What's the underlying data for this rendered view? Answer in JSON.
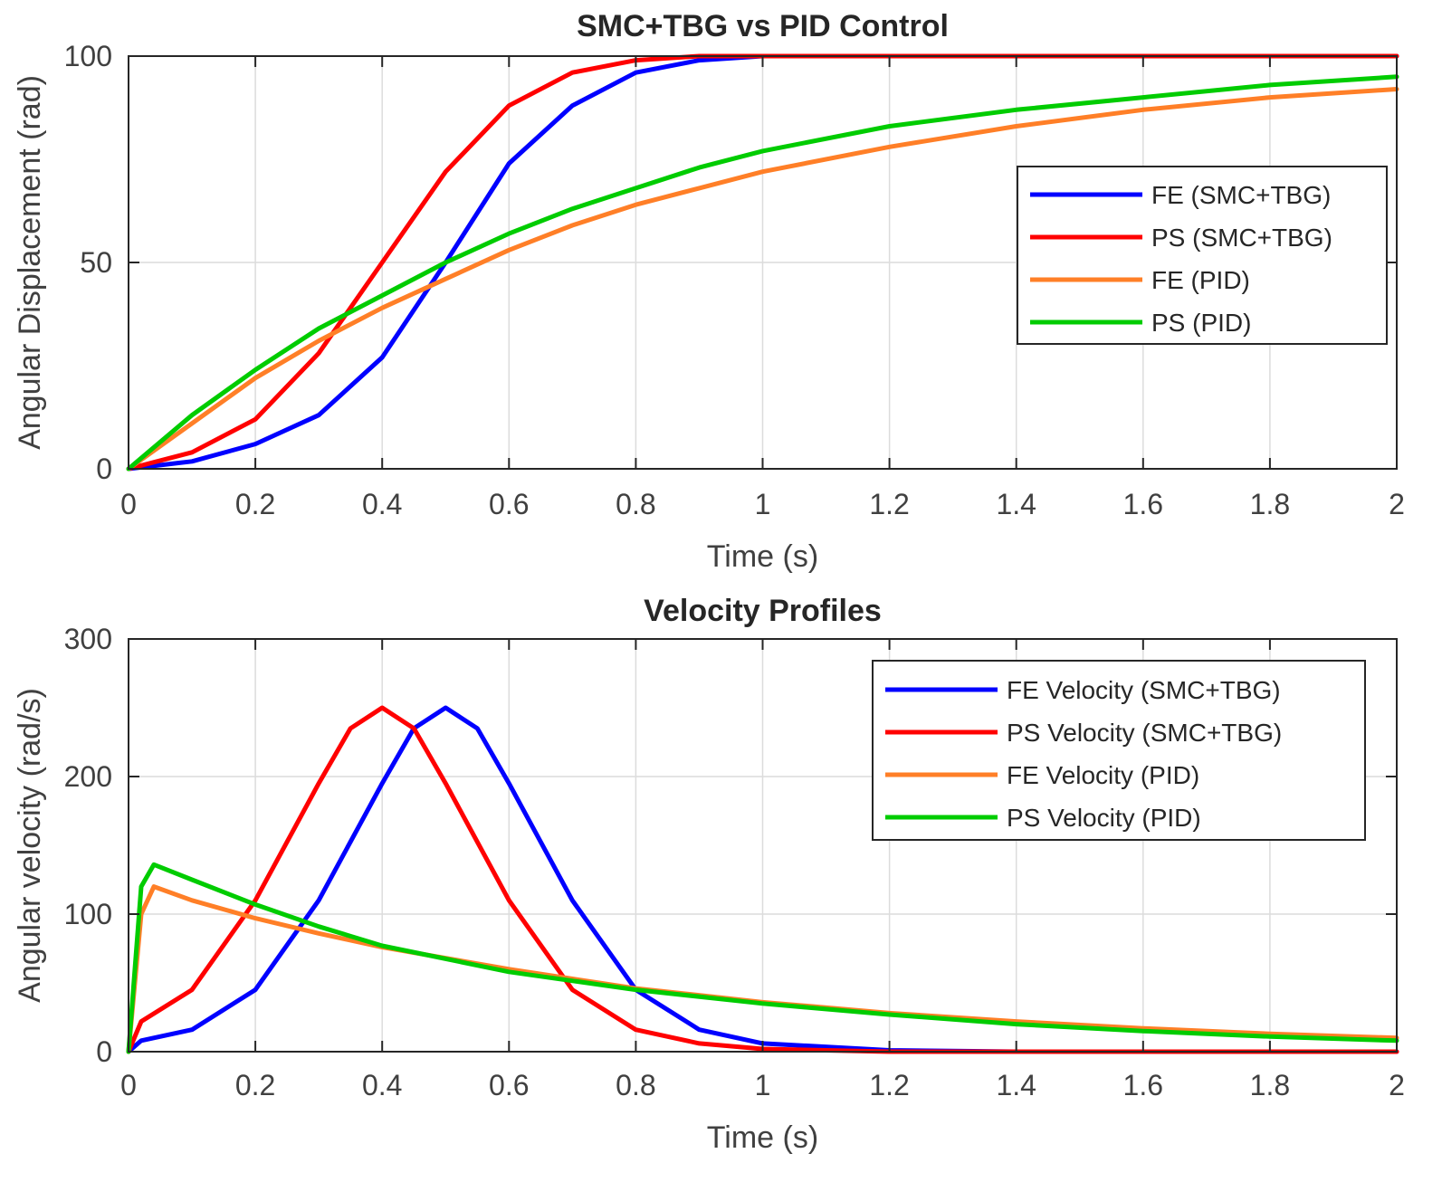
{
  "chart_data": [
    {
      "type": "line",
      "title": "SMC+TBG vs PID Control",
      "xlabel": "Time (s)",
      "ylabel": "Angular Displacement (rad)",
      "xlim": [
        0,
        2
      ],
      "ylim": [
        0,
        100
      ],
      "xticks": [
        0,
        0.2,
        0.4,
        0.6,
        0.8,
        1,
        1.2,
        1.4,
        1.6,
        1.8,
        2
      ],
      "xtick_labels": [
        "0",
        "0.2",
        "0.4",
        "0.6",
        "0.8",
        "1",
        "1.2",
        "1.4",
        "1.6",
        "1.8",
        "2"
      ],
      "yticks": [
        0,
        50,
        100
      ],
      "ytick_labels": [
        "0",
        "50",
        "100"
      ],
      "grid": true,
      "legend_position": "right",
      "x": [
        0,
        0.1,
        0.2,
        0.3,
        0.4,
        0.5,
        0.6,
        0.7,
        0.8,
        0.9,
        1.0,
        1.2,
        1.4,
        1.6,
        1.8,
        2.0
      ],
      "series": [
        {
          "name": "FE (SMC+TBG)",
          "color": "#0000ff",
          "values": [
            0,
            1.8,
            6,
            13,
            27,
            50,
            74,
            88,
            96,
            99,
            100,
            100,
            100,
            100,
            100,
            100
          ]
        },
        {
          "name": "PS (SMC+TBG)",
          "color": "#ff0000",
          "values": [
            0,
            4,
            12,
            28,
            50,
            72,
            88,
            96,
            99,
            100,
            100,
            100,
            100,
            100,
            100,
            100
          ]
        },
        {
          "name": "FE (PID)",
          "color": "#ff7f27",
          "values": [
            0,
            11,
            22,
            31,
            39,
            46,
            53,
            59,
            64,
            68,
            72,
            78,
            83,
            87,
            90,
            92
          ]
        },
        {
          "name": "PS (PID)",
          "color": "#00cc00",
          "values": [
            0,
            13,
            24,
            34,
            42,
            50,
            57,
            63,
            68,
            73,
            77,
            83,
            87,
            90,
            93,
            95
          ]
        }
      ]
    },
    {
      "type": "line",
      "title": "Velocity Profiles",
      "xlabel": "Time (s)",
      "ylabel": "Angular velocity (rad/s)",
      "xlim": [
        0,
        2
      ],
      "ylim": [
        0,
        300
      ],
      "xticks": [
        0,
        0.2,
        0.4,
        0.6,
        0.8,
        1,
        1.2,
        1.4,
        1.6,
        1.8,
        2
      ],
      "xtick_labels": [
        "0",
        "0.2",
        "0.4",
        "0.6",
        "0.8",
        "1",
        "1.2",
        "1.4",
        "1.6",
        "1.8",
        "2"
      ],
      "yticks": [
        0,
        100,
        200,
        300
      ],
      "ytick_labels": [
        "0",
        "100",
        "200",
        "300"
      ],
      "grid": true,
      "legend_position": "top-right",
      "series": [
        {
          "name": "FE Velocity (SMC+TBG)",
          "color": "#0000ff",
          "x": [
            0,
            0.02,
            0.1,
            0.2,
            0.3,
            0.4,
            0.45,
            0.5,
            0.55,
            0.6,
            0.7,
            0.8,
            0.9,
            1.0,
            1.2,
            1.4,
            2.0
          ],
          "values": [
            0,
            8,
            16,
            45,
            110,
            195,
            235,
            250,
            235,
            195,
            110,
            45,
            16,
            6,
            1,
            0,
            0
          ]
        },
        {
          "name": "PS Velocity (SMC+TBG)",
          "color": "#ff0000",
          "x": [
            0,
            0.02,
            0.1,
            0.2,
            0.3,
            0.35,
            0.4,
            0.45,
            0.5,
            0.6,
            0.7,
            0.8,
            0.9,
            1.0,
            1.2,
            2.0
          ],
          "values": [
            0,
            22,
            45,
            110,
            195,
            235,
            250,
            235,
            195,
            110,
            45,
            16,
            6,
            2,
            0,
            0
          ]
        },
        {
          "name": "FE Velocity (PID)",
          "color": "#ff7f27",
          "x": [
            0,
            0.02,
            0.04,
            0.1,
            0.2,
            0.3,
            0.4,
            0.6,
            0.8,
            1.0,
            1.2,
            1.4,
            1.6,
            1.8,
            2.0
          ],
          "values": [
            0,
            100,
            120,
            110,
            97,
            86,
            76,
            60,
            46,
            36,
            28,
            22,
            17,
            13,
            10
          ]
        },
        {
          "name": "PS Velocity (PID)",
          "color": "#00cc00",
          "x": [
            0,
            0.02,
            0.04,
            0.1,
            0.2,
            0.3,
            0.4,
            0.6,
            0.8,
            1.0,
            1.2,
            1.4,
            1.6,
            1.8,
            2.0
          ],
          "values": [
            0,
            120,
            136,
            125,
            107,
            91,
            77,
            58,
            45,
            35,
            27,
            20,
            15,
            11,
            8
          ]
        }
      ]
    }
  ]
}
